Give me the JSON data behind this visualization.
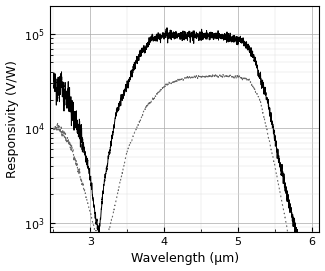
{
  "xlabel": "Wavelength (μm)",
  "ylabel": "Responsivity (V/W)",
  "xlim": [
    2.45,
    6.1
  ],
  "ylim_log": [
    800,
    200000.0
  ],
  "xticks": [
    3,
    4,
    5,
    6
  ],
  "yticks_log": [
    1000.0,
    10000.0,
    100000.0
  ],
  "solid_color": "#000000",
  "dotted_color": "#666666",
  "background_color": "#ffffff",
  "grid_major_color": "#aaaaaa",
  "grid_minor_color": "#dddddd",
  "xlabel_fontsize": 9,
  "ylabel_fontsize": 9,
  "tick_fontsize": 8
}
